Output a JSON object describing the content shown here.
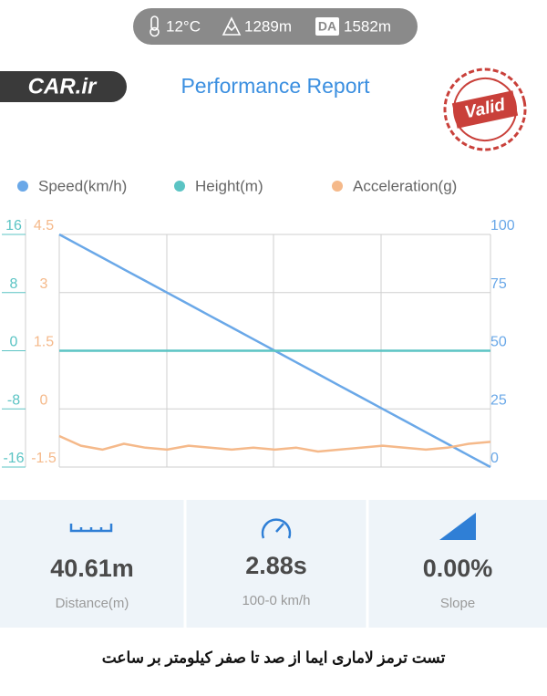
{
  "status_bar": {
    "temperature": "12°C",
    "altitude": "1289m",
    "da_badge": "DA",
    "density_altitude": "1582m"
  },
  "header": {
    "logo": "CAR.ir",
    "title": "Performance Report",
    "stamp": "Valid"
  },
  "chart_data": {
    "type": "line",
    "series": [
      {
        "name": "Speed(km/h)",
        "color": "#6aa8e8",
        "axis": "y",
        "values": [
          100,
          95,
          90,
          85,
          80,
          75,
          70,
          65,
          60,
          55,
          50,
          45,
          40,
          35,
          30,
          25,
          20,
          15,
          10,
          5,
          0
        ]
      },
      {
        "name": "Height(m)",
        "color": "#5bc4c4",
        "axis": "y2",
        "values": [
          0,
          0,
          0,
          0,
          0,
          0,
          0,
          0,
          0,
          0,
          0,
          0,
          0,
          0,
          0,
          0,
          0,
          0,
          0,
          0,
          0
        ]
      },
      {
        "name": "Acceleration(g)",
        "color": "#f5b98a",
        "axis": "y3",
        "values": [
          -0.7,
          -0.95,
          -1.05,
          -0.9,
          -1.0,
          -1.05,
          -0.95,
          -1.0,
          -1.05,
          -1.0,
          -1.05,
          -1.0,
          -1.1,
          -1.05,
          -1.0,
          -0.95,
          -1.0,
          -1.05,
          -1.0,
          -0.9,
          -0.85
        ]
      }
    ],
    "ylim": [
      0,
      100
    ],
    "yticks": [
      100,
      75,
      50,
      25,
      0
    ],
    "y2lim": [
      -16,
      16
    ],
    "y2ticks": [
      16,
      8,
      0,
      -8,
      -16
    ],
    "y3lim": [
      -1.5,
      4.5
    ],
    "y3ticks": [
      4.5,
      3,
      1.5,
      0,
      -1.5
    ],
    "grid": true
  },
  "stats": [
    {
      "value": "40.61m",
      "label": "Distance(m)"
    },
    {
      "value": "2.88s",
      "label": "100-0 km/h"
    },
    {
      "value": "0.00%",
      "label": "Slope"
    }
  ],
  "caption": "تست ترمز لاماری ایما از صد تا صفر کیلومتر بر ساعت"
}
